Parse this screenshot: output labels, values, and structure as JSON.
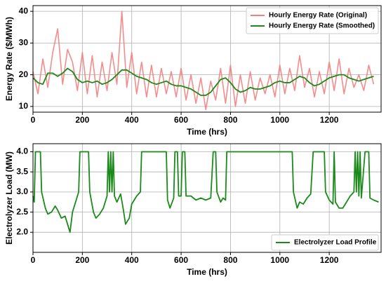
{
  "chart_data": [
    {
      "type": "line",
      "x": [
        0,
        20,
        40,
        60,
        80,
        100,
        120,
        140,
        160,
        180,
        200,
        220,
        240,
        260,
        280,
        300,
        320,
        340,
        360,
        380,
        400,
        420,
        440,
        460,
        480,
        500,
        520,
        540,
        560,
        580,
        600,
        620,
        640,
        660,
        680,
        700,
        720,
        740,
        760,
        780,
        800,
        820,
        840,
        860,
        880,
        900,
        920,
        940,
        960,
        980,
        1000,
        1020,
        1040,
        1060,
        1080,
        1100,
        1120,
        1140,
        1160,
        1180,
        1200,
        1220,
        1240,
        1260,
        1280,
        1300,
        1320,
        1340,
        1360,
        1380
      ],
      "series": [
        {
          "name": "Hourly Energy Rate (Original)",
          "color": "#f47f7f",
          "values": [
            21,
            14,
            25,
            16,
            27,
            34.5,
            17,
            28,
            24,
            15,
            27,
            14,
            26,
            13,
            24,
            15,
            27,
            17,
            40,
            16,
            27,
            14,
            24,
            13,
            23,
            13,
            22,
            14,
            21,
            13,
            22,
            12,
            20,
            11,
            19,
            9,
            18,
            12,
            22,
            11,
            23,
            10,
            20,
            11,
            21,
            12,
            19,
            14,
            20,
            13,
            23,
            14,
            22,
            15,
            26,
            16,
            22,
            13,
            21,
            14,
            24,
            15,
            25,
            14,
            22,
            16,
            20,
            15,
            23,
            17
          ]
        },
        {
          "name": "Hourly Energy Rate (Smoothed)",
          "color": "#1a8a1a",
          "values": [
            19,
            17.5,
            17,
            20.5,
            20.5,
            19.5,
            20.5,
            22,
            21,
            18.5,
            17.5,
            18,
            17.5,
            18,
            17,
            17.5,
            18.5,
            20,
            21.5,
            21.5,
            20.5,
            19.5,
            19,
            18.5,
            17.5,
            17,
            17.5,
            18,
            17,
            16.5,
            16.5,
            16,
            15.5,
            14.5,
            13.5,
            13.5,
            14.5,
            16.5,
            18.5,
            19,
            17.5,
            15.5,
            14.5,
            15,
            16,
            15.5,
            15.5,
            16,
            16.5,
            17.5,
            18,
            17.5,
            17.5,
            18.5,
            19.5,
            19,
            17.5,
            16.5,
            17,
            18,
            19,
            19.5,
            20,
            20,
            19,
            18.5,
            18,
            18.5,
            19,
            19.5
          ]
        }
      ],
      "xlim": [
        0,
        1410
      ],
      "ylim": [
        8.2,
        41.8
      ],
      "xticks": [
        0,
        200,
        400,
        600,
        800,
        1000,
        1200
      ],
      "yticks": [
        10,
        20,
        30,
        40
      ],
      "xlabel": "Time (hrs)",
      "ylabel": "Energy Rate ($/MWh)",
      "grid": true,
      "legend": "upper right"
    },
    {
      "type": "line",
      "x": [
        0,
        5,
        10,
        30,
        35,
        50,
        60,
        75,
        90,
        100,
        115,
        130,
        140,
        150,
        160,
        175,
        185,
        190,
        225,
        230,
        245,
        255,
        270,
        285,
        300,
        305,
        310,
        315,
        320,
        325,
        330,
        340,
        355,
        365,
        375,
        390,
        400,
        420,
        435,
        440,
        540,
        545,
        555,
        570,
        575,
        585,
        590,
        600,
        605,
        615,
        620,
        640,
        660,
        680,
        700,
        720,
        730,
        740,
        745,
        760,
        770,
        780,
        785,
        1050,
        1055,
        1070,
        1080,
        1095,
        1110,
        1125,
        1135,
        1180,
        1185,
        1200,
        1215,
        1220,
        1225,
        1240,
        1255,
        1270,
        1285,
        1300,
        1305,
        1310,
        1315,
        1320,
        1325,
        1330,
        1345,
        1360,
        1365,
        1380,
        1400
      ],
      "series": [
        {
          "name": "Electrolyzer Load Profile",
          "color": "#1a8a1a",
          "values": [
            2.9,
            2.75,
            4.0,
            4.0,
            3.0,
            2.6,
            2.45,
            2.5,
            2.65,
            2.55,
            2.35,
            2.4,
            2.2,
            2.0,
            2.5,
            2.8,
            3.0,
            4.0,
            4.0,
            3.0,
            2.5,
            2.35,
            2.45,
            2.6,
            2.9,
            4.0,
            3.0,
            4.0,
            3.0,
            4.0,
            2.9,
            2.75,
            2.95,
            2.6,
            2.2,
            2.35,
            2.7,
            2.9,
            3.0,
            4.0,
            4.0,
            2.8,
            2.6,
            2.85,
            4.0,
            4.0,
            2.9,
            2.9,
            4.0,
            4.0,
            2.9,
            2.9,
            2.8,
            2.85,
            2.8,
            2.85,
            4.0,
            4.0,
            3.0,
            2.75,
            2.85,
            2.8,
            4.0,
            4.0,
            3.0,
            2.6,
            2.75,
            2.7,
            2.85,
            2.95,
            4.0,
            4.0,
            3.0,
            2.8,
            2.7,
            4.0,
            2.75,
            2.6,
            2.6,
            2.75,
            2.9,
            3.0,
            4.0,
            3.0,
            4.0,
            2.9,
            4.0,
            2.85,
            4.0,
            4.0,
            2.85,
            2.8,
            2.75
          ]
        }
      ],
      "xlim": [
        0,
        1410
      ],
      "ylim": [
        1.5,
        4.2
      ],
      "xticks": [
        0,
        200,
        400,
        600,
        800,
        1000,
        1200
      ],
      "yticks": [
        {
          "value": 2,
          "label": "2.0"
        },
        2.5,
        {
          "value": 3,
          "label": "3.0"
        },
        3.5,
        {
          "value": 4,
          "label": "4.0"
        }
      ],
      "xlabel": "Time (hrs)",
      "ylabel": "Electrolyzer Load (MW)",
      "grid": true,
      "legend": "lower right"
    }
  ]
}
